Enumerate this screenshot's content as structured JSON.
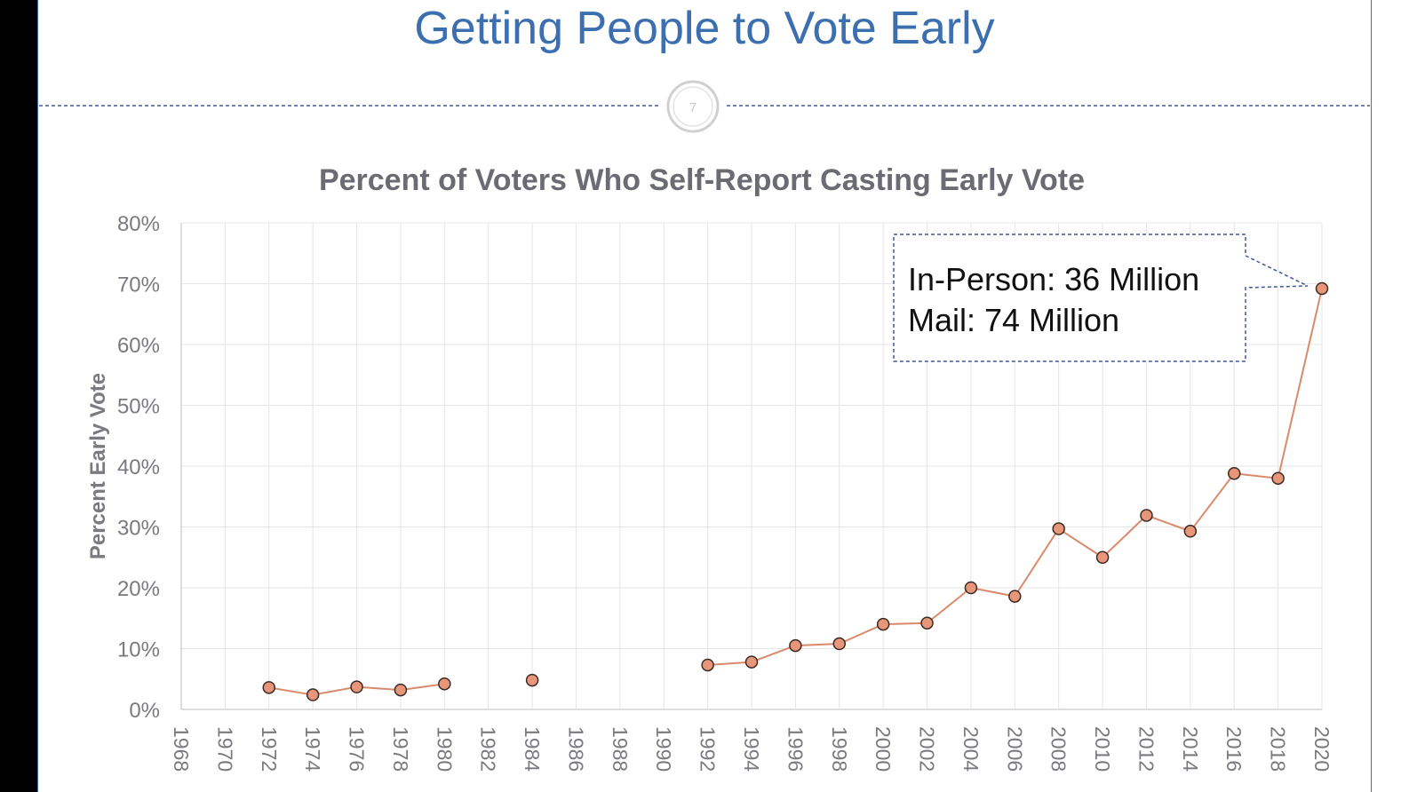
{
  "slide": {
    "title": "Getting People to Vote Early",
    "slide_number": "7"
  },
  "colors": {
    "title": "#3b6fb0",
    "chart_title": "#6b6b73",
    "axis_text": "#7a7a80",
    "grid": "#e6e6e6",
    "line": "#d98a6a",
    "marker_fill": "#e8967a",
    "marker_stroke": "#3a2a24",
    "callout_border": "#44559a"
  },
  "chart_data": {
    "type": "line",
    "title": "Percent of Voters Who Self-Report Casting Early Vote",
    "ylabel": "Percent Early Vote",
    "xlabel": "",
    "ylim": [
      0,
      80
    ],
    "yticks": [
      "0%",
      "10%",
      "20%",
      "30%",
      "40%",
      "50%",
      "60%",
      "70%",
      "80%"
    ],
    "categories": [
      "1968",
      "1970",
      "1972",
      "1974",
      "1976",
      "1978",
      "1980",
      "1982",
      "1984",
      "1986",
      "1988",
      "1990",
      "1992",
      "1994",
      "1996",
      "1998",
      "2000",
      "2002",
      "2004",
      "2006",
      "2008",
      "2010",
      "2012",
      "2014",
      "2016",
      "2018",
      "2020"
    ],
    "grid": true,
    "series": [
      {
        "values": [
          null,
          null,
          3.6,
          2.4,
          3.7,
          3.2,
          4.2,
          null,
          4.8,
          null,
          null,
          null,
          7.3,
          7.8,
          10.5,
          10.8,
          14.0,
          14.2,
          20.0,
          18.6,
          29.7,
          25.0,
          31.9,
          29.3,
          38.8,
          38.0,
          69.2
        ]
      }
    ],
    "annotation": {
      "line1": "In-Person: 36 Million",
      "line2": "Mail: 74 Million",
      "points_to": "2020"
    }
  }
}
